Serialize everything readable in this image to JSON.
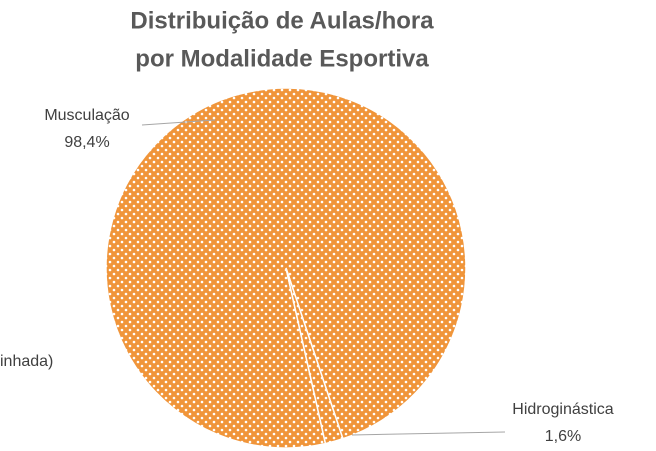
{
  "chart_data": {
    "type": "pie",
    "title": "Distribuição de Aulas/hora",
    "subtitle": "por Modalidade Esportiva",
    "categories": [
      "Musculação",
      "Hidroginástica"
    ],
    "values": [
      98.4,
      1.6
    ],
    "value_labels": [
      "98,4%",
      "1,6%"
    ],
    "color": "#f0953a",
    "annotations": [
      "inhada)"
    ]
  }
}
